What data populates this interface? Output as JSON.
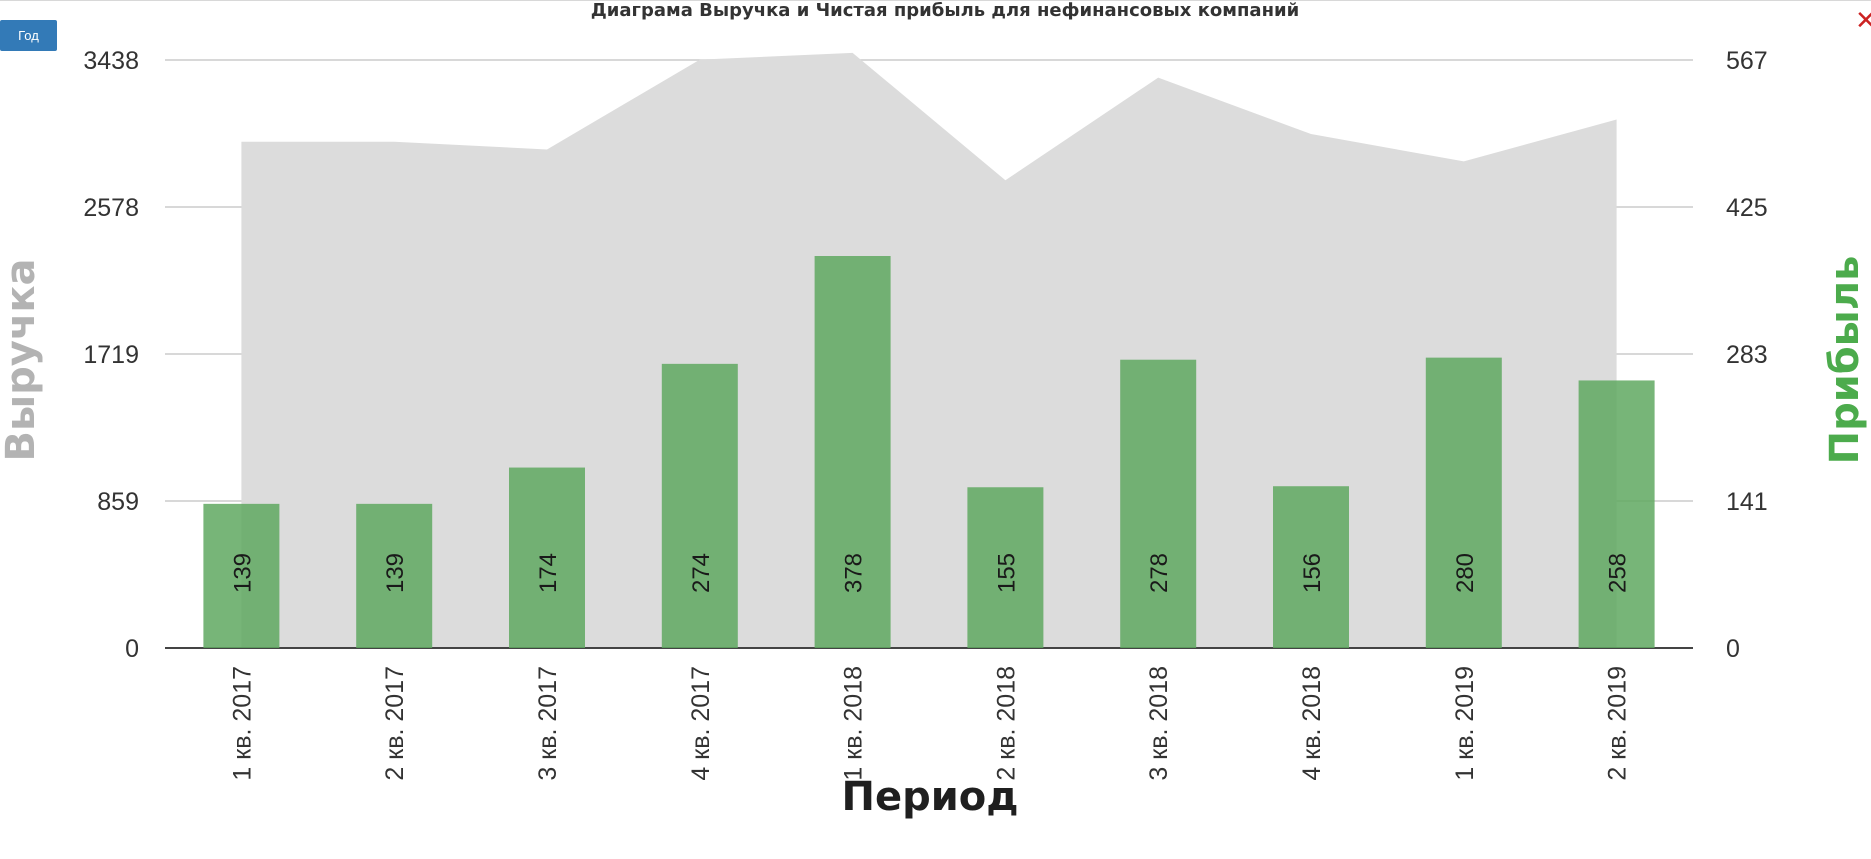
{
  "controls": {
    "year_button_label": "Год"
  },
  "icons": {
    "close": "close-icon"
  },
  "colors": {
    "revenue_area": "#dcdcdc",
    "profit_bar": "#5fa860",
    "grid": "#cccccc",
    "left_axis_label": "#b3b3b3",
    "right_axis_label": "#4cab4c",
    "button": "#337ab7",
    "close": "#cc2222"
  },
  "chart_data": {
    "type": "bar",
    "title": "Диаграма Выручка и Чистая прибыль для нефинансовых компаний",
    "xlabel": "Период",
    "ylabel_left": "Выручка",
    "ylabel_right": "Прибыль",
    "categories": [
      "1 кв. 2017",
      "2 кв. 2017",
      "3 кв. 2017",
      "4 кв. 2017",
      "1 кв. 2018",
      "2 кв. 2018",
      "3 кв. 2018",
      "4 кв. 2018",
      "1 кв. 2019",
      "2 кв. 2019"
    ],
    "ylim_left": [
      0,
      3438
    ],
    "ylim_right": [
      0,
      567
    ],
    "yticks_left": [
      "0",
      "859",
      "1719",
      "2578",
      "3438"
    ],
    "yticks_right": [
      "0",
      "141",
      "283",
      "425",
      "567"
    ],
    "grid": true,
    "series": [
      {
        "name": "Выручка",
        "type": "area",
        "axis": "left",
        "values": [
          2960,
          2960,
          2915,
          3440,
          3480,
          2735,
          3335,
          3005,
          2845,
          3090
        ]
      },
      {
        "name": "Прибыль",
        "type": "bar",
        "axis": "right",
        "values": [
          139,
          139,
          174,
          274,
          378,
          155,
          278,
          156,
          280,
          258
        ],
        "data_labels": [
          "139",
          "139",
          "174",
          "274",
          "378",
          "155",
          "278",
          "156",
          "280",
          "258"
        ]
      }
    ]
  }
}
